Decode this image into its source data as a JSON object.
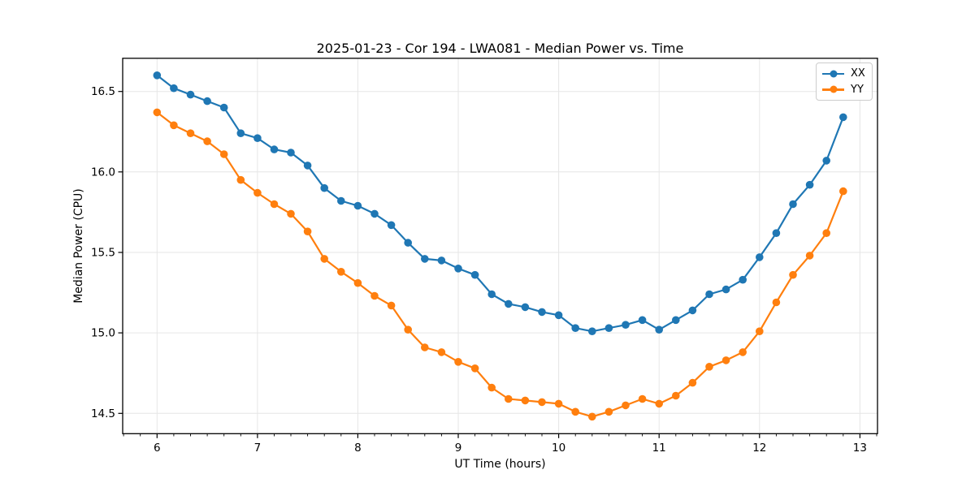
{
  "chart_data": {
    "type": "line",
    "title": "2025-01-23 - Cor 194 - LWA081 - Median Power vs. Time",
    "xlabel": "UT Time (hours)",
    "ylabel": "Median Power (CPU)",
    "xlim": [
      5.658,
      13.175
    ],
    "ylim": [
      14.374,
      16.706
    ],
    "xticks": [
      6,
      7,
      8,
      9,
      10,
      11,
      12,
      13
    ],
    "yticks": [
      14.5,
      15.0,
      15.5,
      16.0,
      16.5
    ],
    "minor_tick_step_hours": 0.1667,
    "grid": true,
    "legend_position": "upper right",
    "background": "#ffffff",
    "axis_color": "#000000",
    "grid_color": "#e6e6e6",
    "x": [
      6.0,
      6.1667,
      6.3333,
      6.5,
      6.6667,
      6.8333,
      7.0,
      7.1667,
      7.3333,
      7.5,
      7.6667,
      7.8333,
      8.0,
      8.1667,
      8.3333,
      8.5,
      8.6667,
      8.8333,
      9.0,
      9.1667,
      9.3333,
      9.5,
      9.6667,
      9.8333,
      10.0,
      10.1667,
      10.3333,
      10.5,
      10.6667,
      10.8333,
      11.0,
      11.1667,
      11.3333,
      11.5,
      11.6667,
      11.8333,
      12.0,
      12.1667,
      12.3333,
      12.5,
      12.6667,
      12.8333
    ],
    "series": [
      {
        "name": "XX",
        "color": "#1f77b4",
        "marker": "circle",
        "values": [
          16.6,
          16.52,
          16.48,
          16.44,
          16.4,
          16.24,
          16.21,
          16.14,
          16.12,
          16.04,
          15.9,
          15.82,
          15.79,
          15.74,
          15.67,
          15.56,
          15.46,
          15.45,
          15.4,
          15.36,
          15.24,
          15.18,
          15.16,
          15.13,
          15.11,
          15.03,
          15.01,
          15.03,
          15.05,
          15.08,
          15.02,
          15.08,
          15.14,
          15.24,
          15.27,
          15.33,
          15.47,
          15.62,
          15.8,
          15.92,
          16.07,
          16.34
        ]
      },
      {
        "name": "YY",
        "color": "#ff7f0e",
        "marker": "circle",
        "values": [
          16.37,
          16.29,
          16.24,
          16.19,
          16.11,
          15.95,
          15.87,
          15.8,
          15.74,
          15.63,
          15.46,
          15.38,
          15.31,
          15.23,
          15.17,
          15.02,
          14.91,
          14.88,
          14.82,
          14.78,
          14.66,
          14.59,
          14.58,
          14.57,
          14.56,
          14.51,
          14.48,
          14.51,
          14.55,
          14.59,
          14.56,
          14.61,
          14.69,
          14.79,
          14.83,
          14.88,
          15.01,
          15.19,
          15.36,
          15.48,
          15.62,
          15.88
        ]
      }
    ]
  }
}
